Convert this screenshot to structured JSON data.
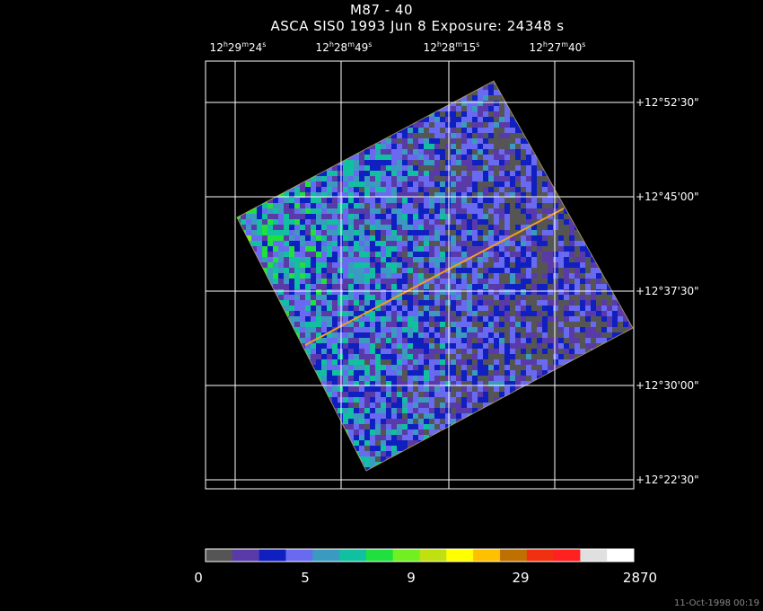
{
  "title": "M87 - 40",
  "subtitle": "ASCA SIS0   1993 Jun  8    Exposure: 24348 s",
  "ra_ticks": [
    {
      "h": "12",
      "m": "29",
      "s": "24"
    },
    {
      "h": "12",
      "m": "28",
      "s": "49"
    },
    {
      "h": "12",
      "m": "28",
      "s": "15"
    },
    {
      "h": "12",
      "m": "27",
      "s": "40"
    }
  ],
  "dec_ticks": [
    "+12°52'30\"",
    "+12°45'00\"",
    "+12°37'30\"",
    "+12°30'00\"",
    "+12°22'30\""
  ],
  "colorbar": {
    "colors": [
      "#555555",
      "#5a3aa8",
      "#1020c0",
      "#6a6af0",
      "#3a9abf",
      "#10c0a0",
      "#20e040",
      "#70f020",
      "#c0e010",
      "#ffff00",
      "#ffc000",
      "#c07000",
      "#f03010",
      "#ff2020",
      "#e0e0e0",
      "#ffffff"
    ],
    "labels": [
      "0",
      "5",
      "9",
      "29",
      "2870"
    ]
  },
  "timestamp": "11-Oct-1998 00:19"
}
